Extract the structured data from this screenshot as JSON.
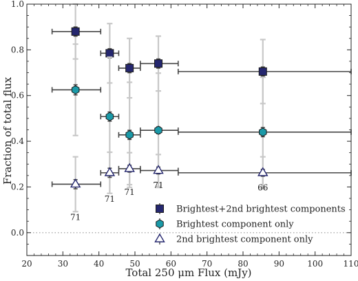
{
  "chart_data": {
    "type": "scatter",
    "xlabel": "Total 250 μm Flux (mJy)",
    "ylabel": "Fraction of total flux",
    "xlim": [
      20,
      110
    ],
    "ylim": [
      -0.1,
      1.0
    ],
    "x_ticks": [
      "20",
      "30",
      "40",
      "50",
      "60",
      "70",
      "80",
      "90",
      "100",
      "110"
    ],
    "y_ticks": [
      "0.0",
      "0.2",
      "0.4",
      "0.6",
      "0.8",
      "1.0"
    ],
    "reference_line": {
      "y": 0.0,
      "style": "dotted"
    },
    "bins": [
      {
        "x": 33.5,
        "x_low": 27.0,
        "x_high": 40.5,
        "count_label": "71"
      },
      {
        "x": 43.0,
        "x_low": 40.5,
        "x_high": 45.5,
        "count_label": "71"
      },
      {
        "x": 48.5,
        "x_low": 45.5,
        "x_high": 51.5,
        "count_label": "71"
      },
      {
        "x": 56.5,
        "x_low": 51.5,
        "x_high": 62.0,
        "count_label": "71"
      },
      {
        "x": 85.5,
        "x_low": 62.0,
        "x_high": 110.0,
        "count_label": "66"
      }
    ],
    "count_labels": [
      {
        "x": 33.5,
        "y": 0.055,
        "text": "71"
      },
      {
        "x": 43.0,
        "y": 0.135,
        "text": "71"
      },
      {
        "x": 48.5,
        "y": 0.165,
        "text": "71"
      },
      {
        "x": 56.5,
        "y": 0.195,
        "text": "71"
      },
      {
        "x": 85.5,
        "y": 0.185,
        "text": "66"
      }
    ],
    "series": [
      {
        "name": "Brightest+2nd brightest components",
        "marker": "square",
        "color": "#25276f",
        "y": [
          0.88,
          0.785,
          0.72,
          0.74,
          0.705
        ],
        "y_err_inner": [
          0.02,
          0.02,
          0.02,
          0.02,
          0.02
        ],
        "y_err_outer": [
          0.12,
          0.13,
          0.13,
          0.12,
          0.14
        ]
      },
      {
        "name": "Brightest component only",
        "marker": "hexagon",
        "color": "#1b9aa8",
        "y": [
          0.625,
          0.508,
          0.428,
          0.448,
          0.44
        ],
        "y_err_inner": [
          0.022,
          0.02,
          0.02,
          0.015,
          0.02
        ],
        "y_err_outer": [
          0.2,
          0.26,
          0.23,
          0.25,
          0.24
        ]
      },
      {
        "name": "2nd brightest component only",
        "marker": "triangle",
        "color": "#25276f",
        "fill": "#ffffff",
        "y": [
          0.212,
          0.262,
          0.28,
          0.272,
          0.262
        ],
        "y_err_inner": [
          0.02,
          0.02,
          0.015,
          0.015,
          0.015
        ],
        "y_err_outer": [
          0.12,
          0.09,
          0.07,
          0.07,
          0.07
        ]
      }
    ],
    "errorbar_color": "#444444",
    "outer_errorbar_color": "#c8c8c8",
    "legend_placement": "lower-center"
  }
}
